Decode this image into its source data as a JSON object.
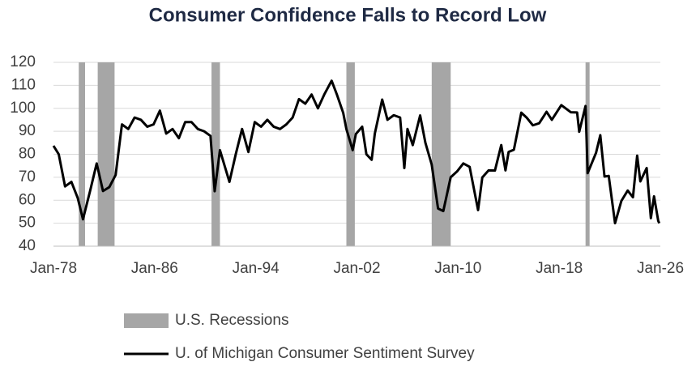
{
  "chart_data": {
    "type": "line",
    "title": "Consumer Confidence Falls to Record Low",
    "x": [
      "Jan-78",
      "Jun-78",
      "Dec-78",
      "Jun-79",
      "Dec-79",
      "May-80",
      "Dec-80",
      "Jun-81",
      "Dec-81",
      "Jun-82",
      "Dec-82",
      "Jun-83",
      "Dec-83",
      "Jun-84",
      "Dec-84",
      "Jun-85",
      "Dec-85",
      "Jun-86",
      "Dec-86",
      "Jun-87",
      "Dec-87",
      "Jun-88",
      "Dec-88",
      "Jun-89",
      "Dec-89",
      "Jun-90",
      "Oct-90",
      "Mar-91",
      "Dec-91",
      "Jun-92",
      "Dec-92",
      "Jun-93",
      "Dec-93",
      "Jun-94",
      "Dec-94",
      "Jun-95",
      "Dec-95",
      "Jun-96",
      "Dec-96",
      "Jun-97",
      "Dec-97",
      "Jun-98",
      "Dec-98",
      "Jun-99",
      "Jan-00",
      "Jun-00",
      "Dec-00",
      "Mar-01",
      "Sep-01",
      "Dec-01",
      "Jun-02",
      "Oct-02",
      "Mar-03",
      "Jun-03",
      "Jan-04",
      "Jun-04",
      "Dec-04",
      "Jun-05",
      "Oct-05",
      "Jan-06",
      "Jun-06",
      "Jan-07",
      "Jun-07",
      "Dec-07",
      "Jun-08",
      "Nov-08",
      "Jun-09",
      "Dec-09",
      "Jun-10",
      "Dec-10",
      "Aug-11",
      "Dec-11",
      "Jun-12",
      "Dec-12",
      "Jun-13",
      "Oct-13",
      "Jan-14",
      "Jun-14",
      "Jan-15",
      "Jun-15",
      "Dec-15",
      "Jun-16",
      "Jan-17",
      "Jun-17",
      "Mar-18",
      "Dec-18",
      "Jun-19",
      "Aug-19",
      "Feb-20",
      "Apr-20",
      "Dec-20",
      "Apr-21",
      "Aug-21",
      "Dec-21",
      "Jun-22",
      "Dec-22",
      "Jun-23",
      "Nov-23",
      "Mar-24",
      "Jun-24",
      "Dec-24",
      "Apr-25",
      "Jul-25",
      "Nov-25",
      "Dec-25"
    ],
    "series": [
      {
        "name": "U. of Michigan Consumer Sentiment Survey",
        "color": "#000000",
        "values": [
          83.7,
          80,
          66,
          68,
          61,
          51.7,
          64.5,
          76,
          64,
          65.7,
          71,
          93,
          91,
          96,
          95,
          92,
          93,
          99,
          89,
          91,
          87,
          94,
          94,
          91,
          90,
          88,
          63.9,
          81.8,
          68,
          80,
          91,
          81,
          94,
          92,
          95,
          92,
          91,
          93,
          96,
          104,
          102,
          106,
          100,
          106,
          112,
          106,
          98,
          91,
          81.8,
          88.8,
          92,
          80,
          77.6,
          89,
          103.8,
          95,
          97,
          96,
          74,
          91,
          84,
          96.9,
          85,
          75.5,
          56.4,
          55.3,
          70,
          72.5,
          76,
          74.5,
          55.7,
          69.9,
          73,
          72.9,
          84,
          73,
          81,
          82,
          98.1,
          96,
          92.6,
          93.5,
          98.5,
          95,
          101.4,
          98.3,
          98.2,
          89.8,
          101,
          71.8,
          80.7,
          88.3,
          70.3,
          70.6,
          50,
          59.7,
          64.2,
          61.3,
          79.4,
          68.2,
          74,
          52.2,
          61.7,
          51,
          50
        ]
      }
    ],
    "recessions": {
      "name": "U.S. Recessions",
      "color": "#a6a6a6",
      "periods": [
        {
          "start": "Jan-80",
          "end": "Jul-80"
        },
        {
          "start": "Jul-81",
          "end": "Nov-82"
        },
        {
          "start": "Jul-90",
          "end": "Mar-91"
        },
        {
          "start": "Mar-01",
          "end": "Nov-01"
        },
        {
          "start": "Dec-07",
          "end": "Jun-09"
        },
        {
          "start": "Feb-20",
          "end": "Apr-20"
        }
      ]
    },
    "xlim": [
      "Jan-78",
      "Jan-26"
    ],
    "xticks": [
      "Jan-78",
      "Jan-86",
      "Jan-94",
      "Jan-02",
      "Jan-10",
      "Jan-18",
      "Jan-26"
    ],
    "ylim": [
      40,
      120
    ],
    "yticks": [
      40,
      50,
      60,
      70,
      80,
      90,
      100,
      110,
      120
    ],
    "grid": true
  }
}
